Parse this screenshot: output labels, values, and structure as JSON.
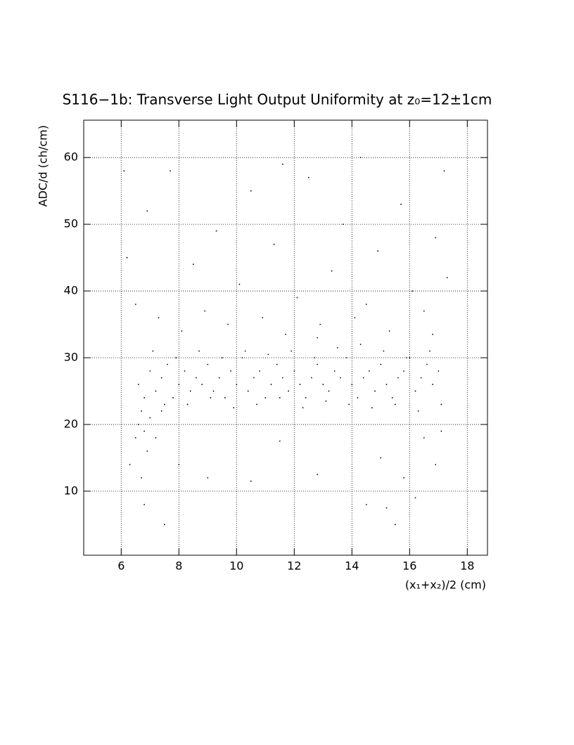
{
  "chart_data": {
    "type": "scatter",
    "title": "S116−1b: Transverse Light Output Uniformity at z₀=12±1cm",
    "xlabel": "(x₁+x₂)/2 (cm)",
    "ylabel": "ADC/d (ch/cm)",
    "xlim": [
      4.7,
      18.7
    ],
    "ylim": [
      0.4,
      65.6
    ],
    "xticks": [
      6,
      8,
      10,
      12,
      14,
      16,
      18
    ],
    "yticks": [
      10,
      20,
      30,
      40,
      50,
      60
    ],
    "grid": true,
    "color": "#000000",
    "x": [
      6.6,
      6.8,
      7.0,
      7.2,
      7.4,
      7.6,
      7.8,
      8.0,
      8.2,
      8.4,
      8.6,
      8.8,
      9.0,
      9.2,
      9.4,
      9.6,
      9.8,
      10.0,
      10.2,
      10.4,
      10.6,
      10.8,
      11.0,
      11.2,
      11.4,
      11.6,
      11.8,
      12.0,
      12.2,
      12.4,
      12.6,
      12.8,
      13.0,
      13.2,
      13.4,
      13.6,
      13.8,
      14.0,
      14.2,
      14.4,
      14.6,
      14.8,
      15.0,
      15.2,
      15.4,
      15.6,
      15.8,
      16.0,
      16.2,
      16.4,
      16.6,
      16.8,
      17.0,
      6.7,
      7.1,
      7.5,
      7.9,
      8.3,
      8.7,
      9.1,
      9.5,
      9.9,
      10.3,
      10.7,
      11.1,
      11.5,
      11.9,
      12.3,
      12.7,
      13.1,
      13.5,
      13.9,
      14.3,
      14.7,
      15.1,
      15.5,
      15.9,
      16.3,
      16.7,
      17.1,
      6.2,
      6.5,
      6.9,
      7.3,
      7.7,
      8.1,
      8.5,
      8.9,
      9.3,
      9.7,
      10.1,
      10.5,
      10.9,
      11.3,
      11.7,
      12.1,
      12.5,
      12.9,
      13.3,
      13.7,
      14.1,
      14.5,
      14.9,
      15.3,
      15.7,
      16.1,
      16.5,
      16.9,
      17.2,
      17.3,
      6.1,
      11.6,
      14.3,
      16.8,
      12.8,
      6.3,
      6.5,
      6.6,
      6.7,
      6.8,
      6.9,
      7.0,
      7.2,
      7.4,
      6.8,
      7.5,
      8.0,
      9.0,
      10.5,
      11.5,
      12.8,
      14.5,
      15.0,
      15.2,
      15.5,
      15.8,
      16.2,
      16.5,
      16.9,
      17.1
    ],
    "values": [
      26,
      24,
      28,
      25,
      27,
      29,
      24,
      26,
      28,
      25,
      27,
      26,
      29,
      25,
      27,
      24,
      28,
      26,
      30,
      25,
      27,
      28,
      24,
      26,
      29,
      27,
      25,
      28,
      26,
      24,
      27,
      29,
      26,
      25,
      28,
      27,
      30,
      26,
      24,
      27,
      28,
      25,
      29,
      26,
      24,
      27,
      28,
      30,
      25,
      27,
      29,
      26,
      28,
      22,
      31,
      23,
      30,
      23,
      31,
      24,
      30,
      22.5,
      31,
      23,
      30.5,
      24,
      31,
      22.5,
      30,
      23.5,
      31.5,
      23,
      32,
      22.5,
      31,
      23,
      30,
      22,
      31,
      23,
      45,
      38,
      52,
      36,
      58,
      34,
      44,
      37,
      49,
      35,
      41,
      55,
      36,
      47,
      33.5,
      39,
      57,
      35,
      43,
      50,
      36,
      38,
      46,
      34,
      53,
      40,
      37,
      48,
      58,
      42,
      58,
      59,
      60,
      33.5,
      33,
      14,
      18,
      20,
      12,
      19,
      16,
      21,
      18,
      22,
      8,
      5,
      14,
      12,
      11.5,
      17.5,
      12.5,
      8,
      15,
      7.5,
      5,
      12,
      9,
      18,
      14,
      19
    ]
  }
}
